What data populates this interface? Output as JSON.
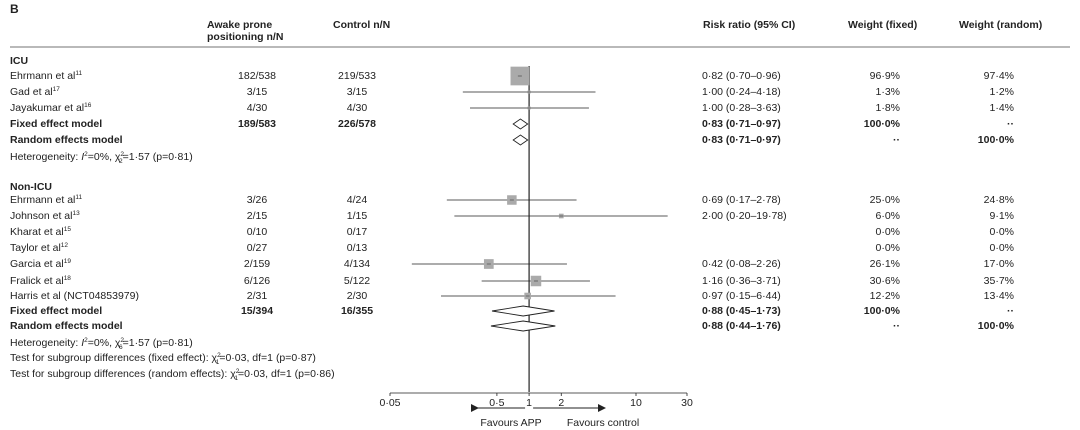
{
  "panel_label": "B",
  "headers": {
    "col_app_line1": "Awake prone",
    "col_app_line2": "positioning n/N",
    "col_control": "Control n/N",
    "col_rr": "Risk ratio (95% CI)",
    "col_wf": "Weight (fixed)",
    "col_wr": "Weight (random)"
  },
  "icu": {
    "title": "ICU",
    "het_prefix": "Heterogeneity: ",
    "het_i": "I",
    "het_rest": "=0%, χ",
    "het_end": "=1·57 (p=0·81)",
    "sup2": "2",
    "sub2": "2"
  },
  "nonicu": {
    "title": "Non-ICU",
    "het_prefix": "Heterogeneity: ",
    "het_i": "I",
    "het_rest": "=0%, χ",
    "het_end": "=1·57 (p=0·81)",
    "sup2": "2",
    "sub6": "6",
    "test_fixed_a": "Test for subgroup differences (fixed effect): χ",
    "test_fixed_b": "=0·03, df=1 (p=0·87)",
    "test_random_a": "Test for subgroup differences (random effects): χ",
    "test_random_b": "=0·03, df=1 (p=0·86)",
    "sup1": "2",
    "sub1": "1"
  },
  "chart_data": {
    "type": "forest",
    "x_scale": "log",
    "xlim": [
      0.05,
      30
    ],
    "x_ticks": [
      "0·05",
      "0·5",
      "1",
      "2",
      "10",
      "30"
    ],
    "x_tick_values": [
      0.05,
      0.5,
      1,
      2,
      10,
      30
    ],
    "favours_left": "Favours APP",
    "favours_right": "Favours control",
    "studies": [
      {
        "name": "Ehrmann et al",
        "ref": "11",
        "app": "182/538",
        "control": "219/533",
        "rr": 0.82,
        "lo": 0.7,
        "hi": 0.96,
        "rr_text": "0·82 (0·70–0·96)",
        "wf": "96·9%",
        "wr": "97·4%",
        "group": "ICU"
      },
      {
        "name": "Gad et al",
        "ref": "17",
        "app": "3/15",
        "control": "3/15",
        "rr": 1.0,
        "lo": 0.24,
        "hi": 4.18,
        "rr_text": "1·00 (0·24–4·18)",
        "wf": "1·3%",
        "wr": "1·2%",
        "group": "ICU"
      },
      {
        "name": "Jayakumar et al",
        "ref": "16",
        "app": "4/30",
        "control": "4/30",
        "rr": 1.0,
        "lo": 0.28,
        "hi": 3.63,
        "rr_text": "1·00 (0·28–3·63)",
        "wf": "1·8%",
        "wr": "1·4%",
        "group": "ICU"
      },
      {
        "name": "Ehrmann et al",
        "ref": "11",
        "app": "3/26",
        "control": "4/24",
        "rr": 0.69,
        "lo": 0.17,
        "hi": 2.78,
        "rr_text": "0·69 (0·17–2·78)",
        "wf": "25·0%",
        "wr": "24·8%",
        "group": "Non-ICU"
      },
      {
        "name": "Johnson et al",
        "ref": "13",
        "app": "2/15",
        "control": "1/15",
        "rr": 2.0,
        "lo": 0.2,
        "hi": 19.78,
        "rr_text": "2·00 (0·20–19·78)",
        "wf": "6·0%",
        "wr": "9·1%",
        "group": "Non-ICU"
      },
      {
        "name": "Kharat et al",
        "ref": "15",
        "app": "0/10",
        "control": "0/17",
        "rr": null,
        "lo": null,
        "hi": null,
        "rr_text": "",
        "wf": "0·0%",
        "wr": "0·0%",
        "group": "Non-ICU"
      },
      {
        "name": "Taylor et al",
        "ref": "12",
        "app": "0/27",
        "control": "0/13",
        "rr": null,
        "lo": null,
        "hi": null,
        "rr_text": "",
        "wf": "0·0%",
        "wr": "0·0%",
        "group": "Non-ICU"
      },
      {
        "name": "Garcia et al",
        "ref": "19",
        "app": "2/159",
        "control": "4/134",
        "rr": 0.42,
        "lo": 0.08,
        "hi": 2.26,
        "rr_text": "0·42 (0·08–2·26)",
        "wf": "26·1%",
        "wr": "17·0%",
        "group": "Non-ICU"
      },
      {
        "name": "Fralick et al",
        "ref": "18",
        "app": "6/126",
        "control": "5/122",
        "rr": 1.16,
        "lo": 0.36,
        "hi": 3.71,
        "rr_text": "1·16 (0·36–3·71)",
        "wf": "30·6%",
        "wr": "35·7%",
        "group": "Non-ICU"
      },
      {
        "name": "Harris et al (NCT04853979)",
        "ref": "",
        "app": "2/31",
        "control": "2/30",
        "rr": 0.97,
        "lo": 0.15,
        "hi": 6.44,
        "rr_text": "0·97 (0·15–6·44)",
        "wf": "12·2%",
        "wr": "13·4%",
        "group": "Non-ICU"
      }
    ],
    "summaries": [
      {
        "name": "Fixed effect model",
        "app": "189/583",
        "control": "226/578",
        "rr": 0.83,
        "lo": 0.71,
        "hi": 0.97,
        "rr_text": "0·83 (0·71–0·97)",
        "wf": "100·0%",
        "wr": "··",
        "group": "ICU"
      },
      {
        "name": "Random effects model",
        "app": "",
        "control": "",
        "rr": 0.83,
        "lo": 0.71,
        "hi": 0.97,
        "rr_text": "0·83 (0·71–0·97)",
        "wf": "··",
        "wr": "100·0%",
        "group": "ICU"
      },
      {
        "name": "Fixed effect model",
        "app": "15/394",
        "control": "16/355",
        "rr": 0.88,
        "lo": 0.45,
        "hi": 1.73,
        "rr_text": "0·88 (0·45–1·73)",
        "wf": "100·0%",
        "wr": "··",
        "group": "Non-ICU"
      },
      {
        "name": "Random effects model",
        "app": "",
        "control": "",
        "rr": 0.88,
        "lo": 0.44,
        "hi": 1.76,
        "rr_text": "0·88 (0·44–1·76)",
        "wf": "··",
        "wr": "100·0%",
        "group": "Non-ICU"
      }
    ]
  }
}
